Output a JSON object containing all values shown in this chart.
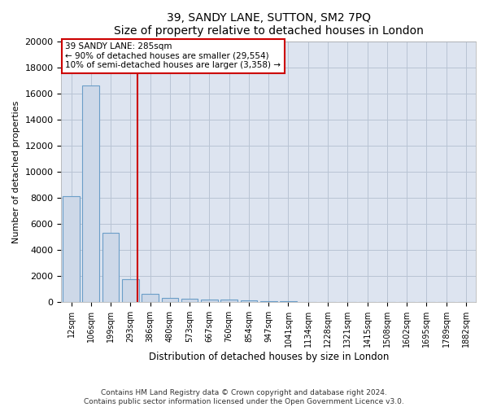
{
  "title": "39, SANDY LANE, SUTTON, SM2 7PQ",
  "subtitle": "Size of property relative to detached houses in London",
  "xlabel": "Distribution of detached houses by size in London",
  "ylabel": "Number of detached properties",
  "bar_labels": [
    "12sqm",
    "106sqm",
    "199sqm",
    "293sqm",
    "386sqm",
    "480sqm",
    "573sqm",
    "667sqm",
    "760sqm",
    "854sqm",
    "947sqm",
    "1041sqm",
    "1134sqm",
    "1228sqm",
    "1321sqm",
    "1415sqm",
    "1508sqm",
    "1602sqm",
    "1695sqm",
    "1789sqm",
    "1882sqm"
  ],
  "bar_values": [
    8100,
    16600,
    5300,
    1750,
    650,
    350,
    270,
    200,
    175,
    110,
    80,
    50,
    35,
    25,
    18,
    12,
    9,
    7,
    5,
    4,
    3
  ],
  "bar_color": "#cdd8e8",
  "bar_edge_color": "#6b9ec8",
  "bar_width": 0.85,
  "grid_color": "#b8c4d4",
  "background_color": "#dde4f0",
  "property_line_x": 3.35,
  "property_label": "39 SANDY LANE: 285sqm",
  "annotation_line1": "← 90% of detached houses are smaller (29,554)",
  "annotation_line2": "10% of semi-detached houses are larger (3,358) →",
  "annotation_box_color": "#ffffff",
  "annotation_box_edge": "#cc0000",
  "property_line_color": "#cc0000",
  "ylim": [
    0,
    20000
  ],
  "yticks": [
    0,
    2000,
    4000,
    6000,
    8000,
    10000,
    12000,
    14000,
    16000,
    18000,
    20000
  ],
  "footer_line1": "Contains HM Land Registry data © Crown copyright and database right 2024.",
  "footer_line2": "Contains public sector information licensed under the Open Government Licence v3.0."
}
